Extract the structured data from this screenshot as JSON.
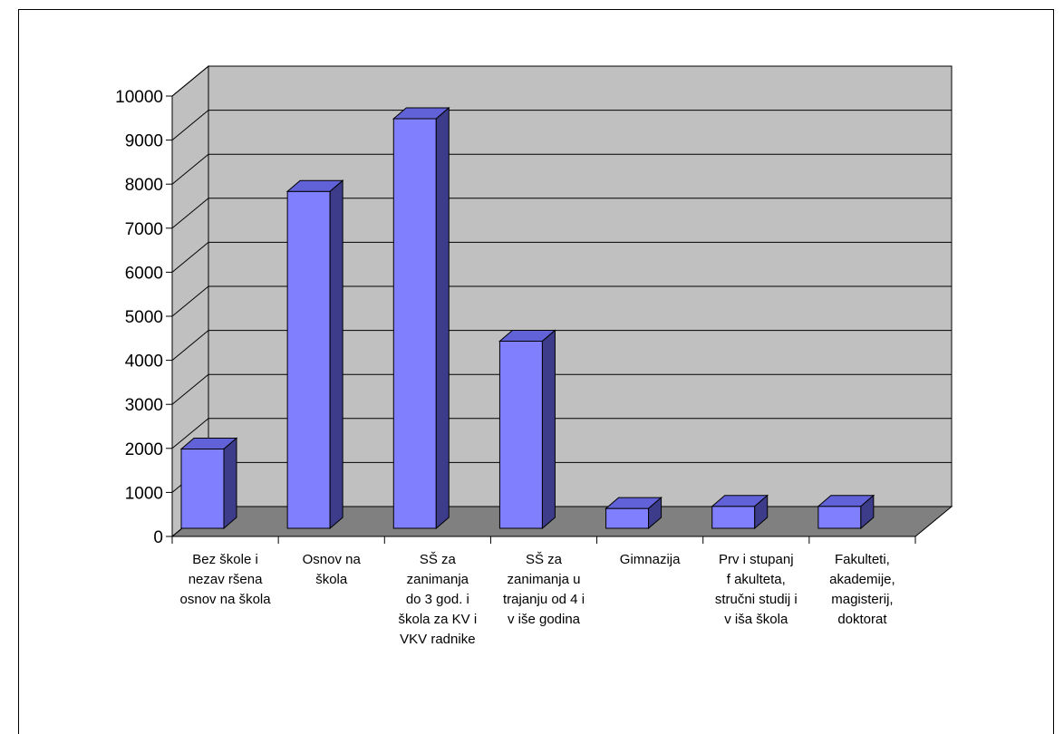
{
  "chart_data": {
    "type": "bar",
    "title": "",
    "xlabel": "",
    "ylabel": "",
    "ylim": [
      0,
      10000
    ],
    "yticks": [
      0,
      1000,
      2000,
      3000,
      4000,
      5000,
      6000,
      7000,
      8000,
      9000,
      10000
    ],
    "grid": true,
    "legend": "none",
    "categories": [
      [
        "Bez škole i",
        "nezav ršena",
        "osnov na škola"
      ],
      [
        "Osnov na",
        "škola"
      ],
      [
        "SŠ za",
        "zanimanja",
        "do 3 god. i",
        "škola za KV i",
        "VKV radnike"
      ],
      [
        "SŠ za",
        "zanimanja u",
        "trajanju od 4 i",
        "v iše godina"
      ],
      [
        "Gimnazija"
      ],
      [
        "Prv i stupanj",
        "f akulteta,",
        "stručni studij i",
        "v iša škola"
      ],
      [
        "Fakulteti,",
        "akademije,",
        "magisterij,",
        "doktorat"
      ]
    ],
    "values": [
      1800,
      7650,
      9300,
      4250,
      450,
      500,
      500
    ],
    "colors": {
      "bar_front": "#8080ff",
      "bar_top": "#6262d8",
      "bar_side": "#3c3c8a",
      "wall": "#c0c0c0",
      "floor": "#808080"
    }
  }
}
